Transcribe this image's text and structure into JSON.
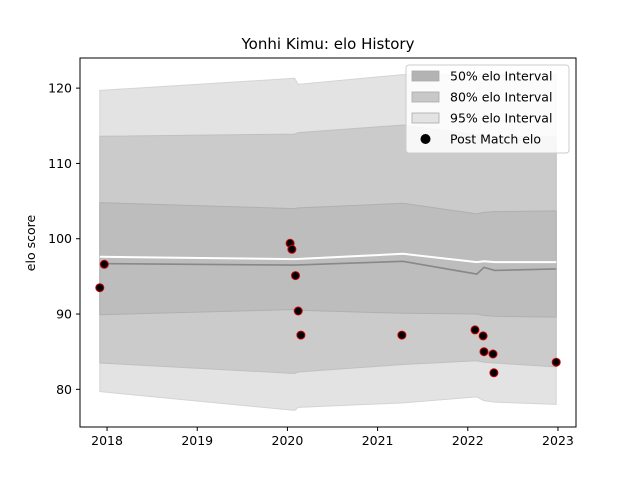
{
  "chart_data": {
    "type": "line",
    "title": "Yonhi Kimu: elo History",
    "xlabel": "",
    "ylabel": "elo score",
    "xlim": [
      2017.7,
      2023.2
    ],
    "ylim": [
      75,
      124
    ],
    "x_ticks": [
      2018,
      2019,
      2020,
      2021,
      2022,
      2023
    ],
    "x_tick_labels": [
      "2018",
      "2019",
      "2020",
      "2021",
      "2022",
      "2023"
    ],
    "y_ticks": [
      80,
      90,
      100,
      110,
      120
    ],
    "y_tick_labels": [
      "80",
      "90",
      "100",
      "110",
      "120"
    ],
    "legend_position": "top-right",
    "legend": [
      {
        "label": "50% elo Interval",
        "color": "#b3b3b3",
        "kind": "patch"
      },
      {
        "label": "80% elo Interval",
        "color": "#c8c8c8",
        "kind": "patch"
      },
      {
        "label": "95% elo Interval",
        "color": "#e3e3e3",
        "kind": "patch"
      },
      {
        "label": "Post Match elo",
        "color": "#000000",
        "kind": "marker"
      }
    ],
    "bands": {
      "x": [
        2017.92,
        2020.08,
        2020.12,
        2021.28,
        2022.1,
        2022.18,
        2022.3,
        2022.98
      ],
      "band95_upper": [
        119.7,
        121.3,
        120.5,
        121.8,
        121.8,
        121.8,
        121.8,
        121.8
      ],
      "band95_lower": [
        79.7,
        77.2,
        77.6,
        78.2,
        79.0,
        78.5,
        78.3,
        78.0
      ],
      "band80_upper": [
        113.6,
        113.9,
        114.1,
        115.1,
        113.8,
        113.6,
        113.6,
        113.6
      ],
      "band80_lower": [
        83.5,
        82.1,
        82.3,
        83.3,
        83.8,
        83.6,
        83.5,
        83.0
      ],
      "band50_upper": [
        104.8,
        104.0,
        104.1,
        104.7,
        103.3,
        103.5,
        103.6,
        103.7
      ],
      "band50_lower": [
        89.9,
        90.6,
        90.5,
        90.1,
        90.0,
        89.8,
        89.7,
        89.6
      ]
    },
    "series": [
      {
        "name": "mean",
        "color": "#888888",
        "x": [
          2017.92,
          2020.08,
          2021.28,
          2022.1,
          2022.18,
          2022.3,
          2022.98
        ],
        "values": [
          96.7,
          96.5,
          97.0,
          95.3,
          96.2,
          95.8,
          96.0
        ]
      },
      {
        "name": "current",
        "color": "#ffffff",
        "x": [
          2017.92,
          2020.08,
          2021.28,
          2022.1,
          2022.18,
          2022.3,
          2022.98
        ],
        "values": [
          97.6,
          97.3,
          98.0,
          96.9,
          97.0,
          96.9,
          96.9
        ]
      }
    ],
    "points": {
      "label": "Post Match elo",
      "face_color": "#000000",
      "edge_color": "#cc0000",
      "x": [
        2017.92,
        2017.97,
        2020.03,
        2020.05,
        2020.09,
        2020.12,
        2020.15,
        2021.27,
        2022.08,
        2022.17,
        2022.18,
        2022.28,
        2022.29,
        2022.98
      ],
      "values": [
        93.5,
        96.6,
        99.4,
        98.6,
        95.1,
        90.4,
        87.2,
        87.2,
        87.9,
        87.1,
        85.0,
        84.7,
        82.2,
        83.6
      ]
    }
  }
}
